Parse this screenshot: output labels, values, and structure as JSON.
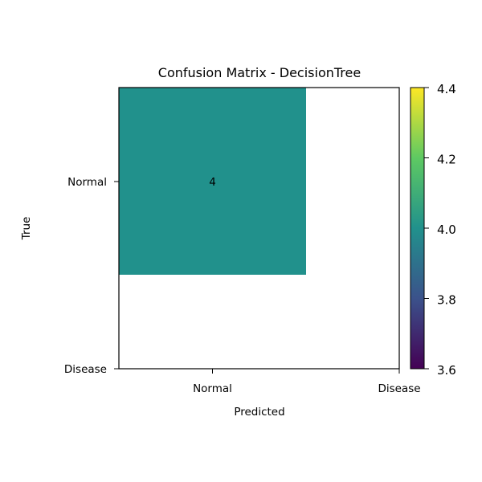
{
  "chart_data": {
    "type": "heatmap",
    "title": "Confusion Matrix - DecisionTree",
    "xlabel": "Predicted",
    "ylabel": "True",
    "x_ticks": [
      "Normal",
      "Disease"
    ],
    "y_ticks": [
      "Normal",
      "Disease"
    ],
    "cells": [
      {
        "true": "Normal",
        "predicted": "Normal",
        "value": 4
      }
    ],
    "cell_color": "#21918c",
    "colorbar": {
      "range": [
        3.6,
        4.4
      ],
      "ticks": [
        "3.6",
        "3.8",
        "4.0",
        "4.2",
        "4.4"
      ],
      "colormap": [
        "#440154",
        "#3b528b",
        "#21918c",
        "#5ec962",
        "#fde725"
      ]
    },
    "grid": false
  }
}
